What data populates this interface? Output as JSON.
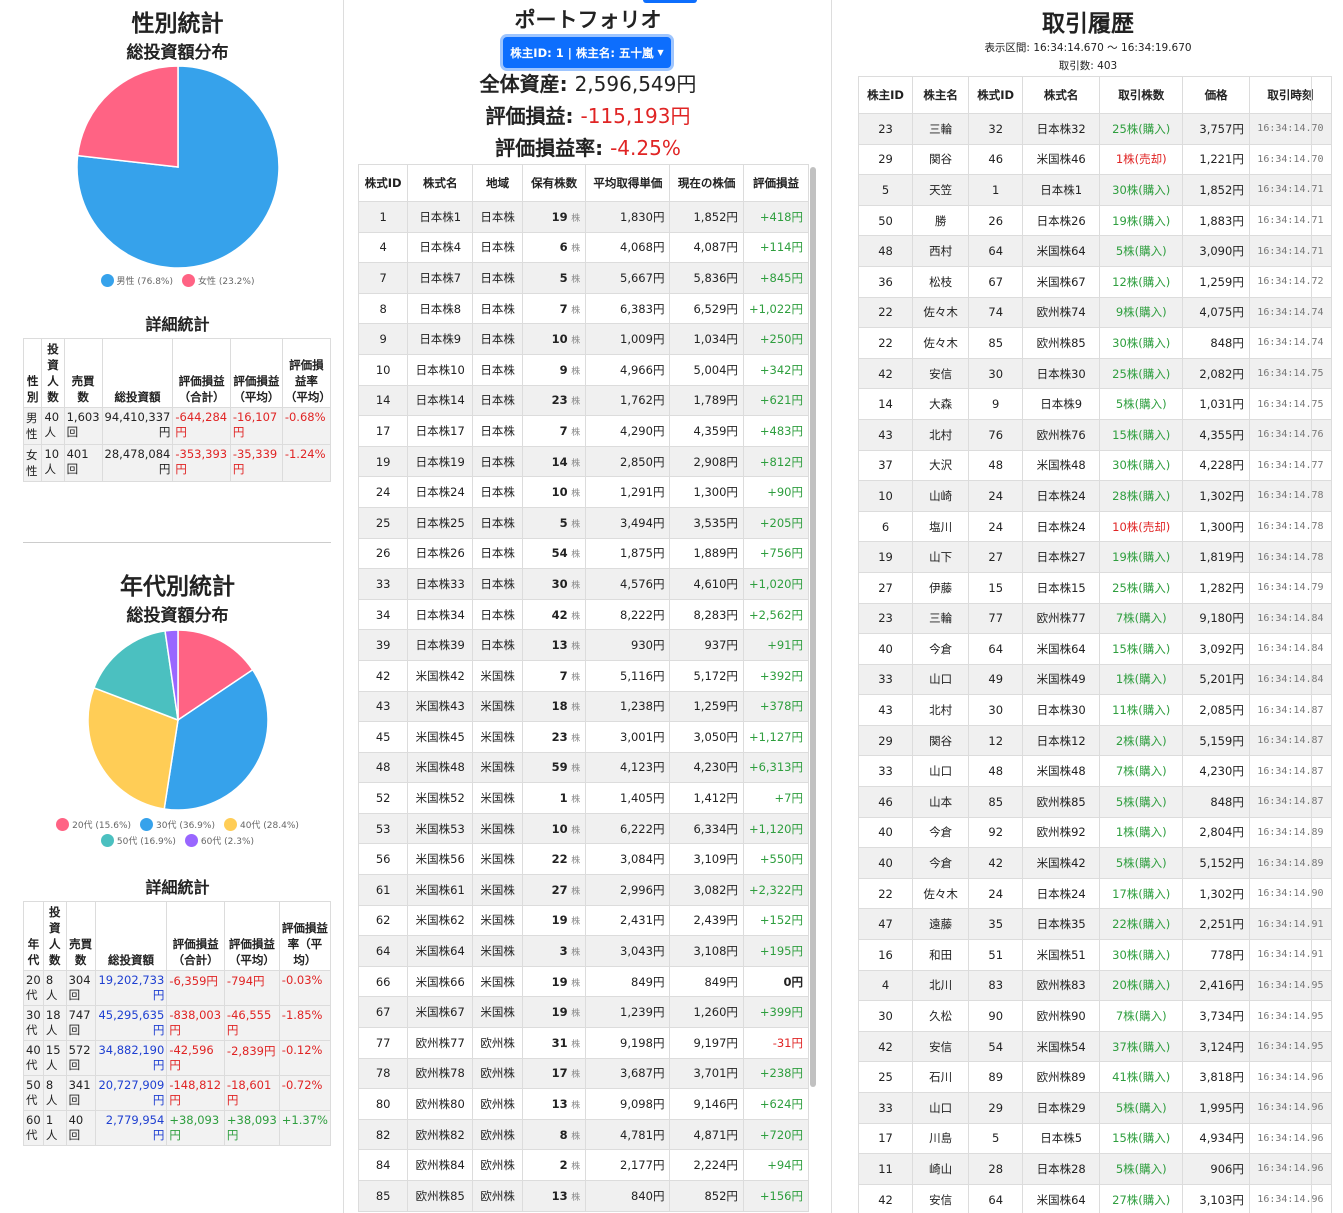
{
  "gender": {
    "title": "性別統計",
    "chart_title": "総投資額分布",
    "detail_title": "詳細統計",
    "chart_data": {
      "type": "pie",
      "title": "総投資額分布",
      "labels": [
        "男性 (76.8%)",
        "女性 (23.2%)"
      ],
      "values": [
        76.8,
        23.2
      ],
      "colors": [
        "#36a2eb",
        "#ff6384"
      ],
      "legend": "bottom"
    },
    "headers": [
      "性別",
      "投資人数",
      "売買数",
      "総投資額",
      "評価損益（合計）",
      "評価損益（平均）",
      "評価損益率（平均）"
    ],
    "rows": [
      {
        "label": "男性",
        "people": "40人",
        "trades": "1,603回",
        "total": "94,410,337円",
        "pl_sum": "-644,284円",
        "pl_avg": "-16,107円",
        "pl_rate": "-0.68%",
        "neg": true
      },
      {
        "label": "女性",
        "people": "10人",
        "trades": "401回",
        "total": "28,478,084円",
        "pl_sum": "-353,393円",
        "pl_avg": "-35,339円",
        "pl_rate": "-1.24%",
        "neg": true
      }
    ]
  },
  "age": {
    "title": "年代別統計",
    "chart_title": "総投資額分布",
    "detail_title": "詳細統計",
    "chart_data": {
      "type": "pie",
      "title": "総投資額分布",
      "labels": [
        "20代 (15.6%)",
        "30代 (36.9%)",
        "40代 (28.4%)",
        "50代 (16.9%)",
        "60代 (2.3%)"
      ],
      "values": [
        15.6,
        36.9,
        28.4,
        16.9,
        2.3
      ],
      "colors": [
        "#ff6384",
        "#36a2eb",
        "#ffcd56",
        "#4bc0c0",
        "#9966ff"
      ],
      "legend": "bottom"
    },
    "headers": [
      "年代",
      "投資人数",
      "売買数",
      "総投資額",
      "評価損益（合計）",
      "評価損益（平均）",
      "評価損益率（平均）"
    ],
    "rows": [
      {
        "label": "20代",
        "people": "8人",
        "trades": "304回",
        "total": "19,202,733円",
        "pl_sum": "-6,359円",
        "pl_avg": "-794円",
        "pl_rate": "-0.03%",
        "neg": true
      },
      {
        "label": "30代",
        "people": "18人",
        "trades": "747回",
        "total": "45,295,635円",
        "pl_sum": "-838,003円",
        "pl_avg": "-46,555円",
        "pl_rate": "-1.85%",
        "neg": true
      },
      {
        "label": "40代",
        "people": "15人",
        "trades": "572回",
        "total": "34,882,190円",
        "pl_sum": "-42,596円",
        "pl_avg": "-2,839円",
        "pl_rate": "-0.12%",
        "neg": true
      },
      {
        "label": "50代",
        "people": "8人",
        "trades": "341回",
        "total": "20,727,909円",
        "pl_sum": "-148,812円",
        "pl_avg": "-18,601円",
        "pl_rate": "-0.72%",
        "neg": true
      },
      {
        "label": "60代",
        "people": "1人",
        "trades": "40回",
        "total": "2,779,954円",
        "pl_sum": "+38,093円",
        "pl_avg": "+38,093円",
        "pl_rate": "+1.37%",
        "neg": false
      }
    ]
  },
  "portfolio": {
    "title": "ポートフォリオ",
    "dropdown_label": "株主ID: 1 | 株主名: 五十嵐",
    "total_label": "全体資産: ",
    "total_value": "2,596,549円",
    "pl_label": "評価損益: ",
    "pl_value": "-115,193円",
    "rate_label": "評価損益率: ",
    "rate_value": "-4.25%",
    "headers": [
      "株式ID",
      "株式名",
      "地域",
      "保有株数",
      "平均取得単価",
      "現在の株価",
      "評価損益"
    ],
    "share_unit": "株",
    "rows": [
      [
        "1",
        "日本株1",
        "日本株",
        "19",
        "1,830円",
        "1,852円",
        "+418円"
      ],
      [
        "4",
        "日本株4",
        "日本株",
        "6",
        "4,068円",
        "4,087円",
        "+114円"
      ],
      [
        "7",
        "日本株7",
        "日本株",
        "5",
        "5,667円",
        "5,836円",
        "+845円"
      ],
      [
        "8",
        "日本株8",
        "日本株",
        "7",
        "6,383円",
        "6,529円",
        "+1,022円"
      ],
      [
        "9",
        "日本株9",
        "日本株",
        "10",
        "1,009円",
        "1,034円",
        "+250円"
      ],
      [
        "10",
        "日本株10",
        "日本株",
        "9",
        "4,966円",
        "5,004円",
        "+342円"
      ],
      [
        "14",
        "日本株14",
        "日本株",
        "23",
        "1,762円",
        "1,789円",
        "+621円"
      ],
      [
        "17",
        "日本株17",
        "日本株",
        "7",
        "4,290円",
        "4,359円",
        "+483円"
      ],
      [
        "19",
        "日本株19",
        "日本株",
        "14",
        "2,850円",
        "2,908円",
        "+812円"
      ],
      [
        "24",
        "日本株24",
        "日本株",
        "10",
        "1,291円",
        "1,300円",
        "+90円"
      ],
      [
        "25",
        "日本株25",
        "日本株",
        "5",
        "3,494円",
        "3,535円",
        "+205円"
      ],
      [
        "26",
        "日本株26",
        "日本株",
        "54",
        "1,875円",
        "1,889円",
        "+756円"
      ],
      [
        "33",
        "日本株33",
        "日本株",
        "30",
        "4,576円",
        "4,610円",
        "+1,020円"
      ],
      [
        "34",
        "日本株34",
        "日本株",
        "42",
        "8,222円",
        "8,283円",
        "+2,562円"
      ],
      [
        "39",
        "日本株39",
        "日本株",
        "13",
        "930円",
        "937円",
        "+91円"
      ],
      [
        "42",
        "米国株42",
        "米国株",
        "7",
        "5,116円",
        "5,172円",
        "+392円"
      ],
      [
        "43",
        "米国株43",
        "米国株",
        "18",
        "1,238円",
        "1,259円",
        "+378円"
      ],
      [
        "45",
        "米国株45",
        "米国株",
        "23",
        "3,001円",
        "3,050円",
        "+1,127円"
      ],
      [
        "48",
        "米国株48",
        "米国株",
        "59",
        "4,123円",
        "4,230円",
        "+6,313円"
      ],
      [
        "52",
        "米国株52",
        "米国株",
        "1",
        "1,405円",
        "1,412円",
        "+7円"
      ],
      [
        "53",
        "米国株53",
        "米国株",
        "10",
        "6,222円",
        "6,334円",
        "+1,120円"
      ],
      [
        "56",
        "米国株56",
        "米国株",
        "22",
        "3,084円",
        "3,109円",
        "+550円"
      ],
      [
        "61",
        "米国株61",
        "米国株",
        "27",
        "2,996円",
        "3,082円",
        "+2,322円"
      ],
      [
        "62",
        "米国株62",
        "米国株",
        "19",
        "2,431円",
        "2,439円",
        "+152円"
      ],
      [
        "64",
        "米国株64",
        "米国株",
        "3",
        "3,043円",
        "3,108円",
        "+195円"
      ],
      [
        "66",
        "米国株66",
        "米国株",
        "19",
        "849円",
        "849円",
        "0円"
      ],
      [
        "67",
        "米国株67",
        "米国株",
        "19",
        "1,239円",
        "1,260円",
        "+399円"
      ],
      [
        "77",
        "欧州株77",
        "欧州株",
        "31",
        "9,198円",
        "9,197円",
        "-31円"
      ],
      [
        "78",
        "欧州株78",
        "欧州株",
        "17",
        "3,687円",
        "3,701円",
        "+238円"
      ],
      [
        "80",
        "欧州株80",
        "欧州株",
        "13",
        "9,098円",
        "9,146円",
        "+624円"
      ],
      [
        "82",
        "欧州株82",
        "欧州株",
        "8",
        "4,781円",
        "4,871円",
        "+720円"
      ],
      [
        "84",
        "欧州株84",
        "欧州株",
        "2",
        "2,177円",
        "2,224円",
        "+94円"
      ],
      [
        "85",
        "欧州株85",
        "欧州株",
        "13",
        "840円",
        "852円",
        "+156円"
      ]
    ]
  },
  "history": {
    "title": "取引履歴",
    "range_label": "表示区間: 16:34:14.670 〜 16:34:19.670",
    "count_label": "取引数: 403",
    "headers": [
      "株主ID",
      "株主名",
      "株式ID",
      "株式名",
      "取引株数",
      "価格",
      "取引時刻"
    ],
    "rows": [
      [
        "23",
        "三輪",
        "32",
        "日本株32",
        "25株(購入)",
        "3,757円",
        "16:34:14.70"
      ],
      [
        "29",
        "関谷",
        "46",
        "米国株46",
        "1株(売却)",
        "1,221円",
        "16:34:14.70"
      ],
      [
        "5",
        "天笠",
        "1",
        "日本株1",
        "30株(購入)",
        "1,852円",
        "16:34:14.71"
      ],
      [
        "50",
        "勝",
        "26",
        "日本株26",
        "19株(購入)",
        "1,883円",
        "16:34:14.71"
      ],
      [
        "48",
        "西村",
        "64",
        "米国株64",
        "5株(購入)",
        "3,090円",
        "16:34:14.71"
      ],
      [
        "36",
        "松枝",
        "67",
        "米国株67",
        "12株(購入)",
        "1,259円",
        "16:34:14.72"
      ],
      [
        "22",
        "佐々木",
        "74",
        "欧州株74",
        "9株(購入)",
        "4,075円",
        "16:34:14.74"
      ],
      [
        "22",
        "佐々木",
        "85",
        "欧州株85",
        "30株(購入)",
        "848円",
        "16:34:14.74"
      ],
      [
        "42",
        "安信",
        "30",
        "日本株30",
        "25株(購入)",
        "2,082円",
        "16:34:14.75"
      ],
      [
        "14",
        "大森",
        "9",
        "日本株9",
        "5株(購入)",
        "1,031円",
        "16:34:14.75"
      ],
      [
        "43",
        "北村",
        "76",
        "欧州株76",
        "15株(購入)",
        "4,355円",
        "16:34:14.76"
      ],
      [
        "37",
        "大沢",
        "48",
        "米国株48",
        "30株(購入)",
        "4,228円",
        "16:34:14.77"
      ],
      [
        "10",
        "山崎",
        "24",
        "日本株24",
        "28株(購入)",
        "1,302円",
        "16:34:14.78"
      ],
      [
        "6",
        "塩川",
        "24",
        "日本株24",
        "10株(売却)",
        "1,300円",
        "16:34:14.78"
      ],
      [
        "19",
        "山下",
        "27",
        "日本株27",
        "19株(購入)",
        "1,819円",
        "16:34:14.78"
      ],
      [
        "27",
        "伊藤",
        "15",
        "日本株15",
        "25株(購入)",
        "1,282円",
        "16:34:14.79"
      ],
      [
        "23",
        "三輪",
        "77",
        "欧州株77",
        "7株(購入)",
        "9,180円",
        "16:34:14.84"
      ],
      [
        "40",
        "今倉",
        "64",
        "米国株64",
        "15株(購入)",
        "3,092円",
        "16:34:14.84"
      ],
      [
        "33",
        "山口",
        "49",
        "米国株49",
        "1株(購入)",
        "5,201円",
        "16:34:14.84"
      ],
      [
        "43",
        "北村",
        "30",
        "日本株30",
        "11株(購入)",
        "2,085円",
        "16:34:14.87"
      ],
      [
        "29",
        "関谷",
        "12",
        "日本株12",
        "2株(購入)",
        "5,159円",
        "16:34:14.87"
      ],
      [
        "33",
        "山口",
        "48",
        "米国株48",
        "7株(購入)",
        "4,230円",
        "16:34:14.87"
      ],
      [
        "46",
        "山本",
        "85",
        "欧州株85",
        "5株(購入)",
        "848円",
        "16:34:14.87"
      ],
      [
        "40",
        "今倉",
        "92",
        "欧州株92",
        "1株(購入)",
        "2,804円",
        "16:34:14.89"
      ],
      [
        "40",
        "今倉",
        "42",
        "米国株42",
        "5株(購入)",
        "5,152円",
        "16:34:14.89"
      ],
      [
        "22",
        "佐々木",
        "24",
        "日本株24",
        "17株(購入)",
        "1,302円",
        "16:34:14.90"
      ],
      [
        "47",
        "遠藤",
        "35",
        "日本株35",
        "22株(購入)",
        "2,251円",
        "16:34:14.91"
      ],
      [
        "16",
        "和田",
        "51",
        "米国株51",
        "30株(購入)",
        "778円",
        "16:34:14.91"
      ],
      [
        "4",
        "北川",
        "83",
        "欧州株83",
        "20株(購入)",
        "2,416円",
        "16:34:14.95"
      ],
      [
        "30",
        "久松",
        "90",
        "欧州株90",
        "7株(購入)",
        "3,734円",
        "16:34:14.95"
      ],
      [
        "42",
        "安信",
        "54",
        "米国株54",
        "37株(購入)",
        "3,124円",
        "16:34:14.95"
      ],
      [
        "25",
        "石川",
        "89",
        "欧州株89",
        "41株(購入)",
        "3,818円",
        "16:34:14.96"
      ],
      [
        "33",
        "山口",
        "29",
        "日本株29",
        "5株(購入)",
        "1,995円",
        "16:34:14.96"
      ],
      [
        "17",
        "川島",
        "5",
        "日本株5",
        "15株(購入)",
        "4,934円",
        "16:34:14.96"
      ],
      [
        "11",
        "崎山",
        "28",
        "日本株28",
        "5株(購入)",
        "906円",
        "16:34:14.96"
      ],
      [
        "42",
        "安信",
        "64",
        "米国株64",
        "27株(購入)",
        "3,103円",
        "16:34:14.96"
      ]
    ]
  }
}
